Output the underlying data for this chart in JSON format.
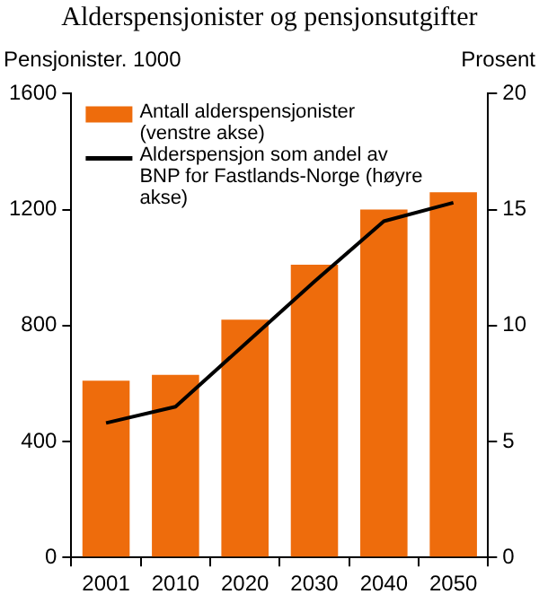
{
  "chart_data": {
    "type": "bar",
    "title": "Alderspensjonister og pensjonsutgifter",
    "ylabel": "Pensjonister. 1000",
    "y2label": "Prosent",
    "categories": [
      "2001",
      "2010",
      "2020",
      "2030",
      "2040",
      "2050"
    ],
    "series": [
      {
        "name": "Antall alderspensjonister (venstre akse)",
        "color": "#ee6c0c",
        "values": [
          610,
          630,
          820,
          1010,
          1200,
          1260
        ]
      },
      {
        "name": "Alderspensjon som andel av BNP for Fastlands-Norge (høyre akse)",
        "type": "line",
        "axis": "y2",
        "color": "#000000",
        "values": [
          5.8,
          6.5,
          9.2,
          11.9,
          14.5,
          15.3
        ]
      }
    ],
    "ylim": [
      0,
      1600
    ],
    "yticks": [
      0,
      400,
      800,
      1200,
      1600
    ],
    "y2lim": [
      0,
      20
    ],
    "y2ticks": [
      0,
      5,
      10,
      15,
      20
    ],
    "grid": false,
    "legend": "top left",
    "marker": "none"
  }
}
